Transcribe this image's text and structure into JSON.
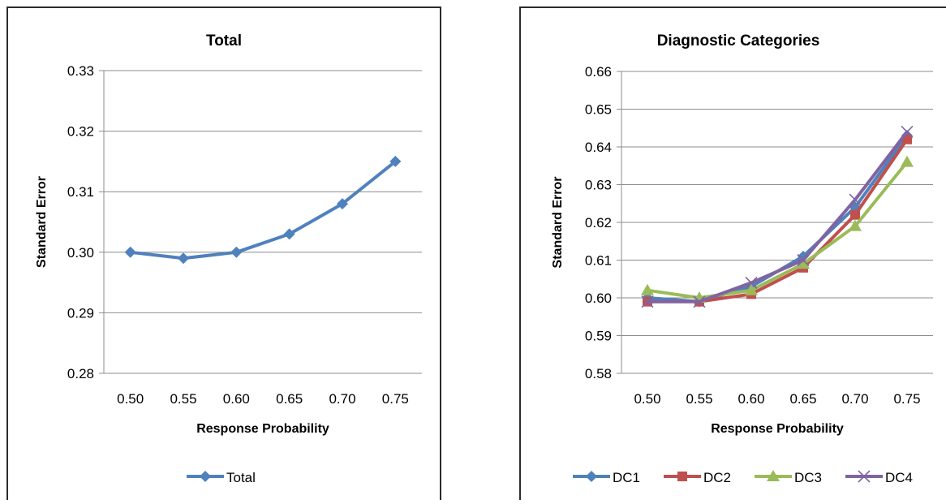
{
  "chart_data": [
    {
      "type": "line",
      "title": "Total",
      "xlabel": "Response Probability",
      "ylabel": "Standard Error",
      "categories": [
        "0.50",
        "0.55",
        "0.60",
        "0.65",
        "0.70",
        "0.75"
      ],
      "y_ticks": [
        "0.28",
        "0.29",
        "0.30",
        "0.31",
        "0.32",
        "0.33"
      ],
      "ylim": [
        0.28,
        0.33
      ],
      "grid": true,
      "legend_position": "bottom",
      "series": [
        {
          "name": "Total",
          "color": "#4F81BD",
          "marker": "diamond",
          "values": [
            0.3,
            0.299,
            0.3,
            0.303,
            0.308,
            0.315
          ]
        }
      ]
    },
    {
      "type": "line",
      "title": "Diagnostic Categories",
      "xlabel": "Response Probability",
      "ylabel": "Standard Error",
      "categories": [
        "0.50",
        "0.55",
        "0.60",
        "0.65",
        "0.70",
        "0.75"
      ],
      "y_ticks": [
        "0.58",
        "0.59",
        "0.60",
        "0.61",
        "0.62",
        "0.63",
        "0.64",
        "0.65",
        "0.66"
      ],
      "ylim": [
        0.58,
        0.66
      ],
      "grid": true,
      "legend_position": "bottom",
      "series": [
        {
          "name": "DC1",
          "color": "#4F81BD",
          "marker": "diamond",
          "values": [
            0.6,
            0.599,
            0.603,
            0.611,
            0.624,
            0.643
          ]
        },
        {
          "name": "DC2",
          "color": "#C0504D",
          "marker": "square",
          "values": [
            0.599,
            0.599,
            0.601,
            0.608,
            0.622,
            0.642
          ]
        },
        {
          "name": "DC3",
          "color": "#9BBB59",
          "marker": "triangle",
          "values": [
            0.602,
            0.6,
            0.602,
            0.609,
            0.619,
            0.636
          ]
        },
        {
          "name": "DC4",
          "color": "#8064A2",
          "marker": "x",
          "values": [
            0.599,
            0.599,
            0.604,
            0.61,
            0.626,
            0.644
          ]
        }
      ]
    }
  ]
}
